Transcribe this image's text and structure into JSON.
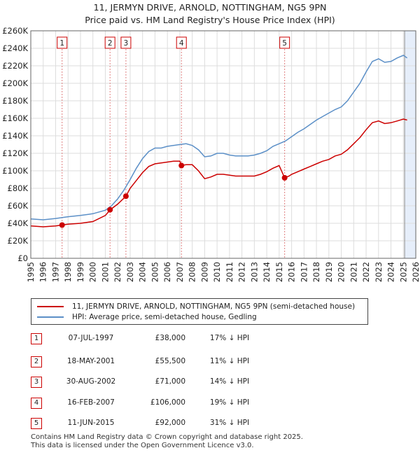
{
  "title_line1": "11, JERMYN DRIVE, ARNOLD, NOTTINGHAM, NG5 9PN",
  "title_line2": "Price paid vs. HM Land Registry's House Price Index (HPI)",
  "colors": {
    "price": "#cc0000",
    "hpi": "#5b8fc7",
    "grid": "#dddddd",
    "shade": "#e6eefa",
    "vline": "#e08080"
  },
  "chart_data": {
    "type": "line",
    "ylim": [
      0,
      260000
    ],
    "xlim": [
      1995,
      2026
    ],
    "yticks": [
      {
        "v": 0,
        "label": "£0"
      },
      {
        "v": 20000,
        "label": "£20K"
      },
      {
        "v": 40000,
        "label": "£40K"
      },
      {
        "v": 60000,
        "label": "£60K"
      },
      {
        "v": 80000,
        "label": "£80K"
      },
      {
        "v": 100000,
        "label": "£100K"
      },
      {
        "v": 120000,
        "label": "£120K"
      },
      {
        "v": 140000,
        "label": "£140K"
      },
      {
        "v": 160000,
        "label": "£160K"
      },
      {
        "v": 180000,
        "label": "£180K"
      },
      {
        "v": 200000,
        "label": "£200K"
      },
      {
        "v": 220000,
        "label": "£220K"
      },
      {
        "v": 240000,
        "label": "£240K"
      },
      {
        "v": 260000,
        "label": "£260K"
      }
    ],
    "xticks": [
      "1995",
      "1996",
      "1997",
      "1998",
      "1999",
      "2000",
      "2001",
      "2002",
      "2003",
      "2004",
      "2005",
      "2006",
      "2007",
      "2008",
      "2009",
      "2010",
      "2011",
      "2012",
      "2013",
      "2014",
      "2015",
      "2016",
      "2017",
      "2018",
      "2019",
      "2020",
      "2021",
      "2022",
      "2023",
      "2024",
      "2025",
      "2026"
    ],
    "future_shade_from": 2025.1,
    "series": [
      {
        "name": "HPI: Average price, semi-detached house, Gedling",
        "color": "#5b8fc7",
        "points": [
          [
            1995.0,
            45000
          ],
          [
            1996.0,
            44000
          ],
          [
            1997.0,
            45500
          ],
          [
            1997.5,
            46500
          ],
          [
            1998.0,
            47500
          ],
          [
            1999.0,
            49000
          ],
          [
            2000.0,
            51000
          ],
          [
            2001.0,
            55000
          ],
          [
            2001.5,
            60000
          ],
          [
            2002.0,
            68000
          ],
          [
            2002.5,
            78000
          ],
          [
            2003.0,
            90000
          ],
          [
            2003.5,
            103000
          ],
          [
            2004.0,
            114000
          ],
          [
            2004.5,
            122000
          ],
          [
            2005.0,
            126000
          ],
          [
            2005.5,
            126000
          ],
          [
            2006.0,
            128000
          ],
          [
            2006.5,
            129000
          ],
          [
            2007.0,
            130000
          ],
          [
            2007.5,
            131000
          ],
          [
            2008.0,
            129000
          ],
          [
            2008.5,
            124000
          ],
          [
            2009.0,
            116000
          ],
          [
            2009.5,
            117000
          ],
          [
            2010.0,
            120000
          ],
          [
            2010.5,
            120000
          ],
          [
            2011.0,
            118000
          ],
          [
            2011.5,
            117000
          ],
          [
            2012.0,
            117000
          ],
          [
            2012.5,
            117000
          ],
          [
            2013.0,
            118000
          ],
          [
            2013.5,
            120000
          ],
          [
            2014.0,
            123000
          ],
          [
            2014.5,
            128000
          ],
          [
            2015.0,
            131000
          ],
          [
            2015.5,
            134000
          ],
          [
            2016.0,
            139000
          ],
          [
            2016.5,
            144000
          ],
          [
            2017.0,
            148000
          ],
          [
            2017.5,
            153000
          ],
          [
            2018.0,
            158000
          ],
          [
            2018.5,
            162000
          ],
          [
            2019.0,
            166000
          ],
          [
            2019.5,
            170000
          ],
          [
            2020.0,
            173000
          ],
          [
            2020.5,
            180000
          ],
          [
            2021.0,
            190000
          ],
          [
            2021.5,
            200000
          ],
          [
            2022.0,
            213000
          ],
          [
            2022.5,
            225000
          ],
          [
            2023.0,
            228000
          ],
          [
            2023.5,
            224000
          ],
          [
            2024.0,
            225000
          ],
          [
            2024.5,
            229000
          ],
          [
            2025.0,
            232000
          ],
          [
            2025.3,
            229000
          ]
        ]
      },
      {
        "name": "11, JERMYN DRIVE, ARNOLD, NOTTINGHAM, NG5 9PN (semi-detached house)",
        "color": "#cc0000",
        "points": [
          [
            1995.0,
            37000
          ],
          [
            1996.0,
            36000
          ],
          [
            1997.0,
            37000
          ],
          [
            1997.5,
            38000
          ],
          [
            1998.0,
            39000
          ],
          [
            1999.0,
            40000
          ],
          [
            2000.0,
            42000
          ],
          [
            2001.0,
            49000
          ],
          [
            2001.4,
            55500
          ],
          [
            2002.0,
            62000
          ],
          [
            2002.66,
            71000
          ],
          [
            2003.0,
            80000
          ],
          [
            2003.5,
            89000
          ],
          [
            2004.0,
            98000
          ],
          [
            2004.5,
            105000
          ],
          [
            2005.0,
            108000
          ],
          [
            2005.5,
            109000
          ],
          [
            2006.0,
            110000
          ],
          [
            2006.5,
            111000
          ],
          [
            2007.0,
            111000
          ],
          [
            2007.13,
            106000
          ],
          [
            2007.5,
            107000
          ],
          [
            2008.0,
            107000
          ],
          [
            2008.5,
            100000
          ],
          [
            2009.0,
            91000
          ],
          [
            2009.5,
            93000
          ],
          [
            2010.0,
            96000
          ],
          [
            2010.5,
            96000
          ],
          [
            2011.0,
            95000
          ],
          [
            2011.5,
            94000
          ],
          [
            2012.0,
            94000
          ],
          [
            2012.5,
            94000
          ],
          [
            2013.0,
            94000
          ],
          [
            2013.5,
            96000
          ],
          [
            2014.0,
            99000
          ],
          [
            2014.5,
            103000
          ],
          [
            2015.0,
            106000
          ],
          [
            2015.44,
            92000
          ],
          [
            2015.8,
            94000
          ],
          [
            2016.0,
            96000
          ],
          [
            2016.5,
            99000
          ],
          [
            2017.0,
            102000
          ],
          [
            2017.5,
            105000
          ],
          [
            2018.0,
            108000
          ],
          [
            2018.5,
            111000
          ],
          [
            2019.0,
            113000
          ],
          [
            2019.5,
            117000
          ],
          [
            2020.0,
            119000
          ],
          [
            2020.5,
            124000
          ],
          [
            2021.0,
            131000
          ],
          [
            2021.5,
            138000
          ],
          [
            2022.0,
            147000
          ],
          [
            2022.5,
            155000
          ],
          [
            2023.0,
            157000
          ],
          [
            2023.5,
            154000
          ],
          [
            2024.0,
            155000
          ],
          [
            2024.5,
            157000
          ],
          [
            2025.0,
            159000
          ],
          [
            2025.3,
            158000
          ]
        ]
      }
    ],
    "sales": [
      {
        "n": "1",
        "x": 1997.52,
        "y": 38000
      },
      {
        "n": "2",
        "x": 2001.38,
        "y": 55500
      },
      {
        "n": "3",
        "x": 2002.66,
        "y": 71000
      },
      {
        "n": "4",
        "x": 2007.13,
        "y": 106000
      },
      {
        "n": "5",
        "x": 2015.44,
        "y": 92000
      }
    ]
  },
  "legend": {
    "price_label": "11, JERMYN DRIVE, ARNOLD, NOTTINGHAM, NG5 9PN (semi-detached house)",
    "hpi_label": "HPI: Average price, semi-detached house, Gedling"
  },
  "transactions": [
    {
      "n": "1",
      "date": "07-JUL-1997",
      "price": "£38,000",
      "hpi": "17% ↓ HPI"
    },
    {
      "n": "2",
      "date": "18-MAY-2001",
      "price": "£55,500",
      "hpi": "11% ↓ HPI"
    },
    {
      "n": "3",
      "date": "30-AUG-2002",
      "price": "£71,000",
      "hpi": "14% ↓ HPI"
    },
    {
      "n": "4",
      "date": "16-FEB-2007",
      "price": "£106,000",
      "hpi": "19% ↓ HPI"
    },
    {
      "n": "5",
      "date": "11-JUN-2015",
      "price": "£92,000",
      "hpi": "31% ↓ HPI"
    }
  ],
  "footer": {
    "line1": "Contains HM Land Registry data © Crown copyright and database right 2025.",
    "line2": "This data is licensed under the Open Government Licence v3.0."
  }
}
